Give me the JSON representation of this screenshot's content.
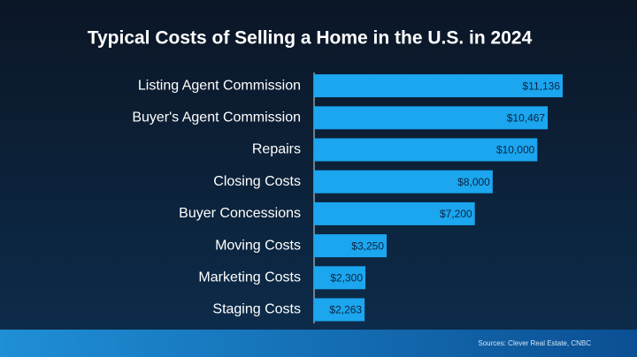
{
  "chart_data": {
    "type": "bar",
    "orientation": "horizontal",
    "title": "Typical Costs of Selling a Home in the U.S. in 2024",
    "categories": [
      "Listing Agent Commission",
      "Buyer's Agent Commission",
      "Repairs",
      "Closing Costs",
      "Buyer Concessions",
      "Moving Costs",
      "Marketing Costs",
      "Staging Costs"
    ],
    "values": [
      11136,
      10467,
      10000,
      8000,
      7200,
      3250,
      2300,
      2263
    ],
    "value_labels": [
      "$11,136",
      "$10,467",
      "$10,000",
      "$8,000",
      "$7,200",
      "$3,250",
      "$2,300",
      "$2,263"
    ],
    "color": "#1ba6ef",
    "source": "Sources: Clever Real Estate, CNBC"
  }
}
